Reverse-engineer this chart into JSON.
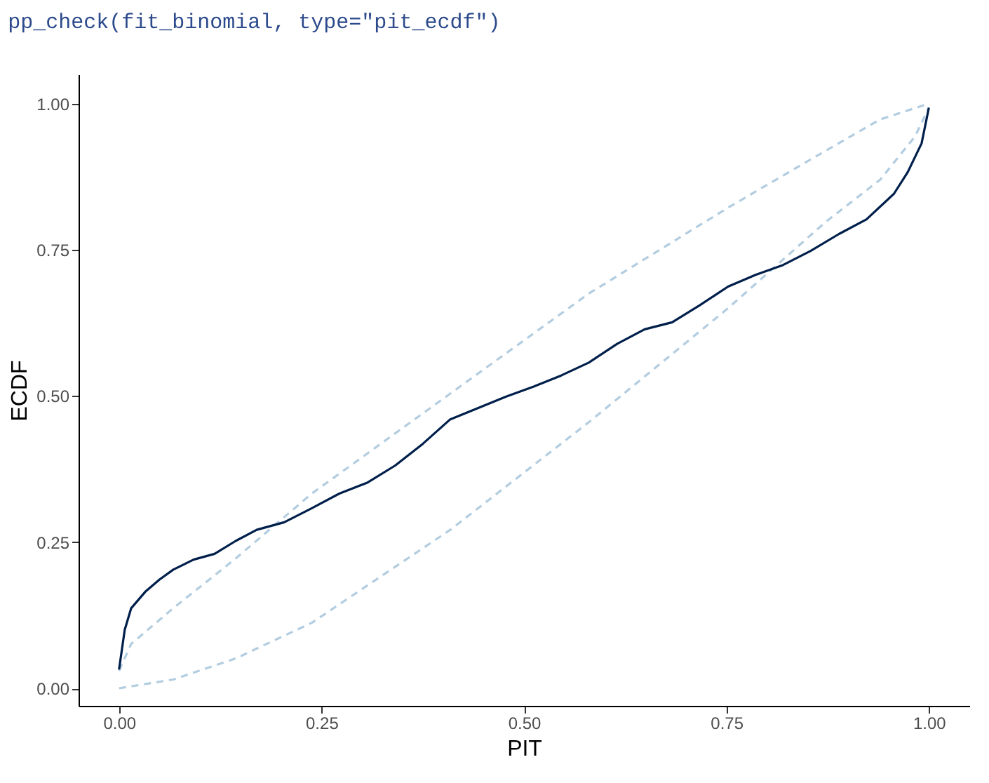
{
  "chart_data": {
    "type": "line",
    "annotations": [
      "pp_check(fit_binomial, type=\"pit_ecdf\")"
    ],
    "xlabel": "PIT",
    "ylabel": "ECDF",
    "xlim": [
      -0.05,
      1.05
    ],
    "ylim": [
      -0.03,
      1.05
    ],
    "xticks": [
      {
        "value": 0,
        "label": "0.00"
      },
      {
        "value": 0.25,
        "label": "0.25"
      },
      {
        "value": 0.5,
        "label": "0.50"
      },
      {
        "value": 0.75,
        "label": "0.75"
      },
      {
        "value": 1,
        "label": "1.00"
      }
    ],
    "yticks": [
      {
        "value": 0,
        "label": "0.00"
      },
      {
        "value": 0.25,
        "label": "0.25"
      },
      {
        "value": 0.5,
        "label": "0.50"
      },
      {
        "value": 0.75,
        "label": "0.75"
      },
      {
        "value": 1,
        "label": "1.00"
      }
    ],
    "series": [
      {
        "color": "#b3cde0",
        "line_style": "dashed",
        "x": [
          0,
          0.015,
          0.067,
          0.144,
          0.238,
          0.409,
          0.58,
          0.752,
          0.872,
          0.94,
          1.0
        ],
        "values": [
          0.03,
          0.076,
          0.137,
          0.222,
          0.333,
          0.504,
          0.675,
          0.822,
          0.919,
          0.973,
          1.0
        ]
      },
      {
        "color": "#b3cde0",
        "line_style": "dashed",
        "x": [
          0,
          0.067,
          0.144,
          0.238,
          0.409,
          0.58,
          0.752,
          0.872,
          0.94,
          0.983,
          1.0
        ],
        "values": [
          0,
          0.015,
          0.051,
          0.112,
          0.271,
          0.455,
          0.65,
          0.797,
          0.87,
          0.944,
          0.993
        ]
      },
      {
        "color": "#011f4b",
        "line_style": "solid",
        "x": [
          0,
          0.007,
          0.015,
          0.033,
          0.05,
          0.067,
          0.092,
          0.118,
          0.144,
          0.17,
          0.204,
          0.238,
          0.272,
          0.307,
          0.341,
          0.375,
          0.409,
          0.443,
          0.478,
          0.512,
          0.546,
          0.58,
          0.615,
          0.649,
          0.683,
          0.717,
          0.752,
          0.786,
          0.82,
          0.854,
          0.889,
          0.923,
          0.957,
          0.974,
          0.991,
          1.0
        ],
        "values": [
          0.032,
          0.1,
          0.137,
          0.166,
          0.186,
          0.203,
          0.22,
          0.23,
          0.252,
          0.271,
          0.284,
          0.308,
          0.333,
          0.352,
          0.381,
          0.418,
          0.46,
          0.479,
          0.499,
          0.516,
          0.535,
          0.557,
          0.589,
          0.614,
          0.626,
          0.655,
          0.687,
          0.707,
          0.724,
          0.748,
          0.777,
          0.802,
          0.846,
          0.883,
          0.932,
          0.993
        ]
      }
    ]
  }
}
